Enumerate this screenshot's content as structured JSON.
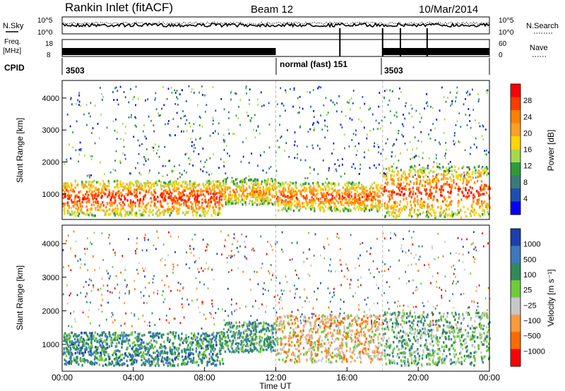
{
  "header": {
    "station": "Rankin Inlet (fitACF)",
    "beam": "Beam 12",
    "date": "10/Mar/2014"
  },
  "panels": {
    "nsky_label": "N.Sky",
    "nsky_ticks": [
      "10^5",
      "10^0"
    ],
    "nsearch_label": "N.Search",
    "nsearch_ticks": [
      "10^5",
      "10^0"
    ],
    "freq_label_line1": "Freq.",
    "freq_label_line2": "[MHz]",
    "freq_ticks": [
      "18",
      "8"
    ],
    "nave_label": "Nave",
    "nave_ticks": [
      "60",
      "0"
    ],
    "cpid_label": "CPID",
    "cpid_segments": [
      {
        "label": "3503"
      },
      {
        "label": "normal (fast)  151"
      },
      {
        "label": "3503"
      }
    ]
  },
  "chart_data": [
    {
      "type": "heatmap",
      "name": "Power",
      "ylabel": "Slant Range [km]",
      "ylim": [
        200,
        4550
      ],
      "yticks": [
        1000,
        2000,
        3000,
        4000
      ],
      "xlim_hours": [
        0,
        24
      ],
      "colorbar": {
        "label": "Power [dB]",
        "ticks": [
          "28",
          "24",
          "20",
          "16",
          "12",
          "8",
          "4"
        ],
        "colors": [
          "#ff0000",
          "#ff3a00",
          "#ff8000",
          "#ffa020",
          "#ffd400",
          "#a8d84a",
          "#2d9b3a",
          "#3a7a78",
          "#1c4fb0",
          "#0000ff"
        ]
      },
      "bands": [
        {
          "h0": 0,
          "h1": 9,
          "r0": 350,
          "r1": 1450,
          "level": 0.95
        },
        {
          "h0": 9,
          "h1": 12,
          "r0": 700,
          "r1": 1500,
          "level": 0.75
        },
        {
          "h0": 12,
          "h1": 18,
          "r0": 500,
          "r1": 1400,
          "level": 0.85
        },
        {
          "h0": 18,
          "h1": 24,
          "r0": 300,
          "r1": 1900,
          "level": 0.92
        }
      ]
    },
    {
      "type": "heatmap",
      "name": "Velocity",
      "ylabel": "Slant Range [km]",
      "ylim": [
        200,
        4550
      ],
      "yticks": [
        1000,
        2000,
        3000,
        4000
      ],
      "xlim_hours": [
        0,
        24
      ],
      "colorbar": {
        "label": "Velocity [m s⁻¹]",
        "ticks": [
          "1000",
          "500",
          "100",
          "25",
          "−25",
          "−100",
          "−500",
          "−1000"
        ],
        "colors": [
          "#1a3fb0",
          "#3a7abf",
          "#2f8a5a",
          "#6ecb3c",
          "#c8c8c8",
          "#ff9a3a",
          "#ff6a00",
          "#ff0000"
        ]
      },
      "bands": [
        {
          "h0": 0,
          "h1": 9,
          "r0": 400,
          "r1": 1400,
          "level": 0.25
        },
        {
          "h0": 9,
          "h1": 12,
          "r0": 800,
          "r1": 1700,
          "level": 0.3
        },
        {
          "h0": 12,
          "h1": 18,
          "r0": 500,
          "r1": 1900,
          "level": 0.65
        },
        {
          "h0": 18,
          "h1": 24,
          "r0": 400,
          "r1": 2000,
          "level": 0.4
        }
      ]
    }
  ],
  "x_axis": {
    "label": "Time UT",
    "ticks": [
      "00:00",
      "04:00",
      "08:00",
      "12:00",
      "16:00",
      "20:00",
      "00:00"
    ]
  }
}
